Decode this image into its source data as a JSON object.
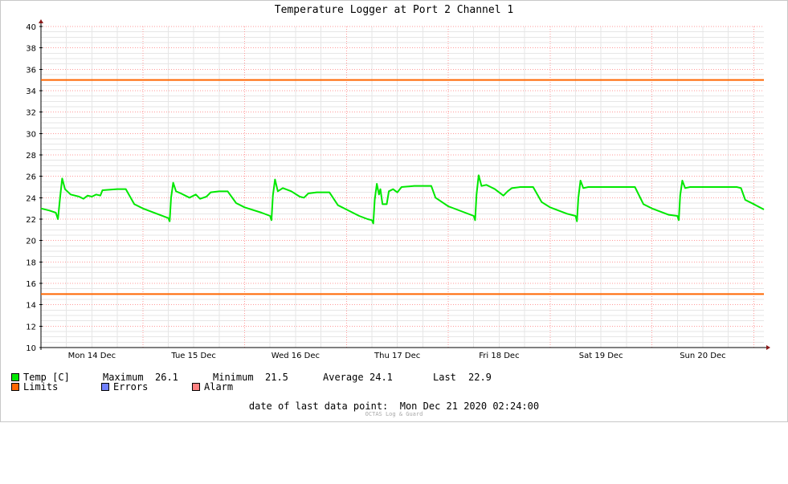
{
  "chart_data": {
    "type": "line",
    "title": "Temperature Logger at Port 2 Channel 1",
    "xlabel": "",
    "ylabel": "",
    "ylim": [
      10,
      40
    ],
    "yticks": [
      10,
      12,
      14,
      16,
      18,
      20,
      22,
      24,
      26,
      28,
      30,
      32,
      34,
      36,
      38,
      40
    ],
    "xlim": [
      "Mon 14 Dec 00:00",
      "Mon 21 Dec 02:24"
    ],
    "day_labels": [
      "Mon 14 Dec",
      "Tue 15 Dec",
      "Wed 16 Dec",
      "Thu 17 Dec",
      "Fri 18 Dec",
      "Sat 19 Dec",
      "Sun 20 Dec"
    ],
    "grid": true,
    "legend_placement": "bottom",
    "series": [
      {
        "name": "Temp [C]",
        "color": "#00e800",
        "values": [
          [
            "Mon 14 Dec 00:00",
            23.0
          ],
          [
            "Mon 14 Dec 02:00",
            22.8
          ],
          [
            "Mon 14 Dec 03:30",
            22.6
          ],
          [
            "Mon 14 Dec 04:00",
            22.0
          ],
          [
            "Mon 14 Dec 04:30",
            24.0
          ],
          [
            "Mon 14 Dec 05:00",
            25.8
          ],
          [
            "Mon 14 Dec 05:40",
            24.8
          ],
          [
            "Mon 14 Dec 07:00",
            24.3
          ],
          [
            "Mon 14 Dec 09:00",
            24.1
          ],
          [
            "Mon 14 Dec 10:00",
            23.9
          ],
          [
            "Mon 14 Dec 11:00",
            24.2
          ],
          [
            "Mon 14 Dec 12:00",
            24.1
          ],
          [
            "Mon 14 Dec 13:00",
            24.3
          ],
          [
            "Mon 14 Dec 14:00",
            24.2
          ],
          [
            "Mon 14 Dec 14:30",
            24.7
          ],
          [
            "Mon 14 Dec 18:00",
            24.8
          ],
          [
            "Mon 14 Dec 20:00",
            24.8
          ],
          [
            "Mon 14 Dec 22:00",
            23.4
          ],
          [
            "Tue 15 Dec 00:00",
            23.0
          ],
          [
            "Tue 15 Dec 04:00",
            22.4
          ],
          [
            "Tue 15 Dec 06:00",
            22.1
          ],
          [
            "Tue 15 Dec 06:20",
            21.8
          ],
          [
            "Tue 15 Dec 06:40",
            24.0
          ],
          [
            "Tue 15 Dec 07:10",
            25.4
          ],
          [
            "Tue 15 Dec 07:50",
            24.6
          ],
          [
            "Tue 15 Dec 09:00",
            24.4
          ],
          [
            "Tue 15 Dec 11:00",
            24.0
          ],
          [
            "Tue 15 Dec 12:30",
            24.3
          ],
          [
            "Tue 15 Dec 13:30",
            23.9
          ],
          [
            "Tue 15 Dec 15:00",
            24.1
          ],
          [
            "Tue 15 Dec 16:00",
            24.5
          ],
          [
            "Tue 15 Dec 18:00",
            24.6
          ],
          [
            "Tue 15 Dec 20:00",
            24.6
          ],
          [
            "Tue 15 Dec 22:00",
            23.5
          ],
          [
            "Wed 16 Dec 00:00",
            23.1
          ],
          [
            "Wed 16 Dec 04:00",
            22.6
          ],
          [
            "Wed 16 Dec 06:00",
            22.3
          ],
          [
            "Wed 16 Dec 06:20",
            21.9
          ],
          [
            "Wed 16 Dec 06:40",
            24.2
          ],
          [
            "Wed 16 Dec 07:10",
            25.7
          ],
          [
            "Wed 16 Dec 07:50",
            24.6
          ],
          [
            "Wed 16 Dec 09:00",
            24.9
          ],
          [
            "Wed 16 Dec 11:00",
            24.6
          ],
          [
            "Wed 16 Dec 13:00",
            24.1
          ],
          [
            "Wed 16 Dec 14:00",
            24.0
          ],
          [
            "Wed 16 Dec 15:00",
            24.4
          ],
          [
            "Wed 16 Dec 17:00",
            24.5
          ],
          [
            "Wed 16 Dec 20:00",
            24.5
          ],
          [
            "Wed 16 Dec 22:00",
            23.3
          ],
          [
            "Thu 17 Dec 00:00",
            22.9
          ],
          [
            "Thu 17 Dec 03:00",
            22.3
          ],
          [
            "Thu 17 Dec 05:00",
            22.0
          ],
          [
            "Thu 17 Dec 06:00",
            21.9
          ],
          [
            "Thu 17 Dec 06:20",
            21.6
          ],
          [
            "Thu 17 Dec 06:40",
            23.8
          ],
          [
            "Thu 17 Dec 07:10",
            25.3
          ],
          [
            "Thu 17 Dec 07:40",
            24.3
          ],
          [
            "Thu 17 Dec 08:00",
            24.8
          ],
          [
            "Thu 17 Dec 08:30",
            23.4
          ],
          [
            "Thu 17 Dec 09:30",
            23.4
          ],
          [
            "Thu 17 Dec 10:00",
            24.6
          ],
          [
            "Thu 17 Dec 11:00",
            24.8
          ],
          [
            "Thu 17 Dec 12:00",
            24.5
          ],
          [
            "Thu 17 Dec 13:00",
            25.0
          ],
          [
            "Thu 17 Dec 16:00",
            25.1
          ],
          [
            "Thu 17 Dec 20:00",
            25.1
          ],
          [
            "Thu 17 Dec 21:00",
            24.0
          ],
          [
            "Fri 18 Dec 00:00",
            23.2
          ],
          [
            "Fri 18 Dec 04:00",
            22.6
          ],
          [
            "Fri 18 Dec 06:00",
            22.3
          ],
          [
            "Fri 18 Dec 06:20",
            21.9
          ],
          [
            "Fri 18 Dec 06:40",
            24.3
          ],
          [
            "Fri 18 Dec 07:10",
            26.1
          ],
          [
            "Fri 18 Dec 07:50",
            25.1
          ],
          [
            "Fri 18 Dec 09:00",
            25.2
          ],
          [
            "Fri 18 Dec 11:00",
            24.8
          ],
          [
            "Fri 18 Dec 12:00",
            24.5
          ],
          [
            "Fri 18 Dec 13:00",
            24.2
          ],
          [
            "Fri 18 Dec 14:00",
            24.6
          ],
          [
            "Fri 18 Dec 15:00",
            24.9
          ],
          [
            "Fri 18 Dec 17:00",
            25.0
          ],
          [
            "Fri 18 Dec 20:00",
            25.0
          ],
          [
            "Fri 18 Dec 22:00",
            23.6
          ],
          [
            "Sat 19 Dec 00:00",
            23.1
          ],
          [
            "Sat 19 Dec 04:00",
            22.5
          ],
          [
            "Sat 19 Dec 06:00",
            22.3
          ],
          [
            "Sat 19 Dec 06:20",
            21.8
          ],
          [
            "Sat 19 Dec 06:40",
            24.0
          ],
          [
            "Sat 19 Dec 07:10",
            25.6
          ],
          [
            "Sat 19 Dec 07:50",
            24.9
          ],
          [
            "Sat 19 Dec 09:00",
            25.0
          ],
          [
            "Sat 19 Dec 20:00",
            25.0
          ],
          [
            "Sat 19 Dec 22:00",
            23.4
          ],
          [
            "Sun 20 Dec 00:00",
            23.0
          ],
          [
            "Sun 20 Dec 04:00",
            22.4
          ],
          [
            "Sun 20 Dec 06:00",
            22.3
          ],
          [
            "Sun 20 Dec 06:20",
            21.9
          ],
          [
            "Sun 20 Dec 06:40",
            24.2
          ],
          [
            "Sun 20 Dec 07:10",
            25.6
          ],
          [
            "Sun 20 Dec 07:50",
            24.9
          ],
          [
            "Sun 20 Dec 09:00",
            25.0
          ],
          [
            "Sun 20 Dec 20:00",
            25.0
          ],
          [
            "Sun 20 Dec 21:00",
            24.9
          ],
          [
            "Sun 20 Dec 22:00",
            23.8
          ],
          [
            "Mon 21 Dec 00:00",
            23.4
          ],
          [
            "Mon 21 Dec 02:24",
            22.9
          ]
        ]
      },
      {
        "name": "Limits",
        "color": "#ff6600",
        "values": [
          [
            "Mon 14 Dec 00:00",
            35
          ],
          [
            "Mon 21 Dec 02:24",
            35
          ]
        ]
      },
      {
        "name": "Limits",
        "color": "#ff6600",
        "values": [
          [
            "Mon 14 Dec 00:00",
            15
          ],
          [
            "Mon 21 Dec 02:24",
            15
          ]
        ]
      }
    ]
  },
  "legend": {
    "temp_label": "Temp [C]",
    "temp_color": "#00e800",
    "maximum_label": "Maximum",
    "maximum_value": "26.1",
    "minimum_label": "Minimum",
    "minimum_value": "21.5",
    "average_label": "Average",
    "average_value": "24.1",
    "last_label": "Last",
    "last_value": "22.9",
    "limits_label": "Limits",
    "limits_color": "#ff6600",
    "errors_label": "Errors",
    "errors_color": "#7080ff",
    "alarm_label": "Alarm",
    "alarm_color": "#ff8080"
  },
  "footer": {
    "date_label": "date of last data point:",
    "date_value": "Mon Dec 21 2020 02:24:00"
  },
  "watermark": "OCTAS Log & Guard"
}
